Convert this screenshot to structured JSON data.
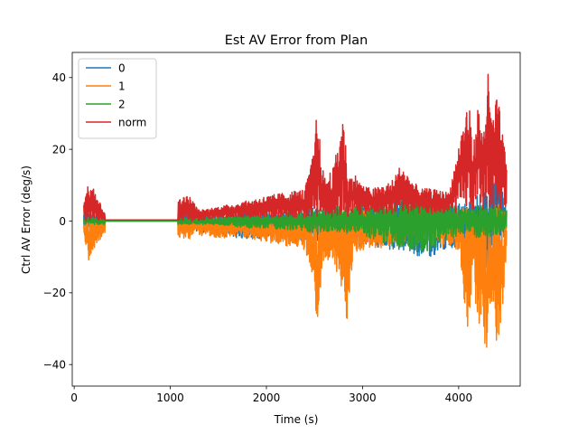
{
  "chart_data": {
    "type": "line",
    "title": "Est AV Error from Plan",
    "xlabel": "Time (s)",
    "ylabel": "Ctrl AV Error (deg/s)",
    "xlim": [
      -20,
      4640
    ],
    "ylim": [
      -46,
      47
    ],
    "xticks": [
      0,
      1000,
      2000,
      3000,
      4000
    ],
    "yticks": [
      -40,
      -20,
      0,
      20,
      40
    ],
    "xtick_labels": [
      "0",
      "1000",
      "2000",
      "3000",
      "4000"
    ],
    "ytick_labels": [
      "−40",
      "−20",
      "0",
      "20",
      "40"
    ],
    "grid": false,
    "legend_position": "top-left",
    "series": [
      {
        "name": "0",
        "color": "#1f77b4",
        "x": [
          100,
          300,
          1100,
          1200,
          1300,
          1500,
          1700,
          2000,
          2200,
          2500,
          2700,
          2900,
          3100,
          3300,
          3500,
          3600,
          3700,
          3900,
          4100,
          4200,
          4300,
          4400,
          4500
        ],
        "low": [
          -2,
          -3,
          -3,
          -3,
          -3,
          -4,
          -5,
          -5,
          -5,
          -6,
          -6,
          -7,
          -7,
          -8,
          -9,
          -10,
          -10,
          -8,
          -6,
          -12,
          -14,
          -8,
          -5
        ],
        "high": [
          2,
          3,
          3,
          3,
          2,
          3,
          3,
          3,
          3,
          4,
          4,
          5,
          5,
          6,
          7,
          7,
          7,
          5,
          5,
          8,
          10,
          12,
          6
        ]
      },
      {
        "name": "1",
        "color": "#ff7f0e",
        "x": [
          100,
          150,
          200,
          300,
          1100,
          1200,
          1250,
          1300,
          1500,
          1700,
          2000,
          2200,
          2400,
          2500,
          2520,
          2600,
          2700,
          2800,
          2850,
          2900,
          3000,
          3100,
          3300,
          3500,
          3600,
          3800,
          4000,
          4100,
          4150,
          4200,
          4250,
          4300,
          4350,
          4400,
          4450,
          4500
        ],
        "low": [
          -5,
          -11,
          -8,
          -4,
          -5,
          -5,
          -3,
          -4,
          -5,
          -4,
          -6,
          -7,
          -8,
          -18,
          -30,
          -10,
          -12,
          -22,
          -30,
          -9,
          -8,
          -8,
          -7,
          -6,
          -6,
          -7,
          -8,
          -33,
          -15,
          -30,
          -28,
          -42,
          -25,
          -35,
          -27,
          -10
        ],
        "high": [
          1,
          1,
          1,
          1,
          1,
          1,
          1,
          1,
          1,
          1,
          1,
          1,
          2,
          2,
          2,
          2,
          2,
          3,
          3,
          4,
          4,
          3,
          3,
          3,
          3,
          3,
          3,
          5,
          3,
          5,
          5,
          3,
          4,
          5,
          4,
          3
        ]
      },
      {
        "name": "2",
        "color": "#2ca02c",
        "x": [
          100,
          1100,
          1300,
          1500,
          1800,
          2000,
          2400,
          2700,
          2900,
          3100,
          3300,
          3500,
          3600,
          3700,
          3800,
          3900,
          4100,
          4200,
          4400,
          4500
        ],
        "low": [
          -1,
          -1,
          -1,
          -1,
          -2,
          -2,
          -3,
          -3,
          -3,
          -5,
          -7,
          -8,
          -9,
          -8,
          -7,
          -5,
          -3,
          -5,
          -4,
          -3
        ],
        "high": [
          1,
          1,
          1,
          1,
          2,
          2,
          3,
          4,
          4,
          5,
          6,
          7,
          8,
          7,
          6,
          5,
          3,
          5,
          4,
          3
        ]
      },
      {
        "name": "norm",
        "color": "#d62728",
        "x": [
          100,
          150,
          200,
          300,
          1100,
          1200,
          1300,
          1500,
          1700,
          2000,
          2200,
          2400,
          2500,
          2520,
          2600,
          2700,
          2800,
          2850,
          2900,
          3000,
          3100,
          3300,
          3400,
          3500,
          3600,
          3700,
          3900,
          4100,
          4150,
          4200,
          4250,
          4300,
          4350,
          4400,
          4500
        ],
        "low": [
          0,
          0,
          0,
          0,
          0,
          0,
          0,
          1,
          1,
          1,
          1,
          1,
          1,
          1,
          1,
          1,
          1,
          1,
          1,
          2,
          2,
          2,
          2,
          2,
          2,
          2,
          2,
          3,
          3,
          3,
          3,
          3,
          3,
          3,
          3
        ],
        "high": [
          5,
          11,
          10,
          3,
          7,
          7,
          3,
          4,
          5,
          7,
          8,
          9,
          20,
          31,
          12,
          15,
          31,
          12,
          14,
          10,
          9,
          11,
          16,
          12,
          9,
          9,
          8,
          35,
          20,
          33,
          24,
          43,
          28,
          36,
          16
        ]
      }
    ]
  }
}
